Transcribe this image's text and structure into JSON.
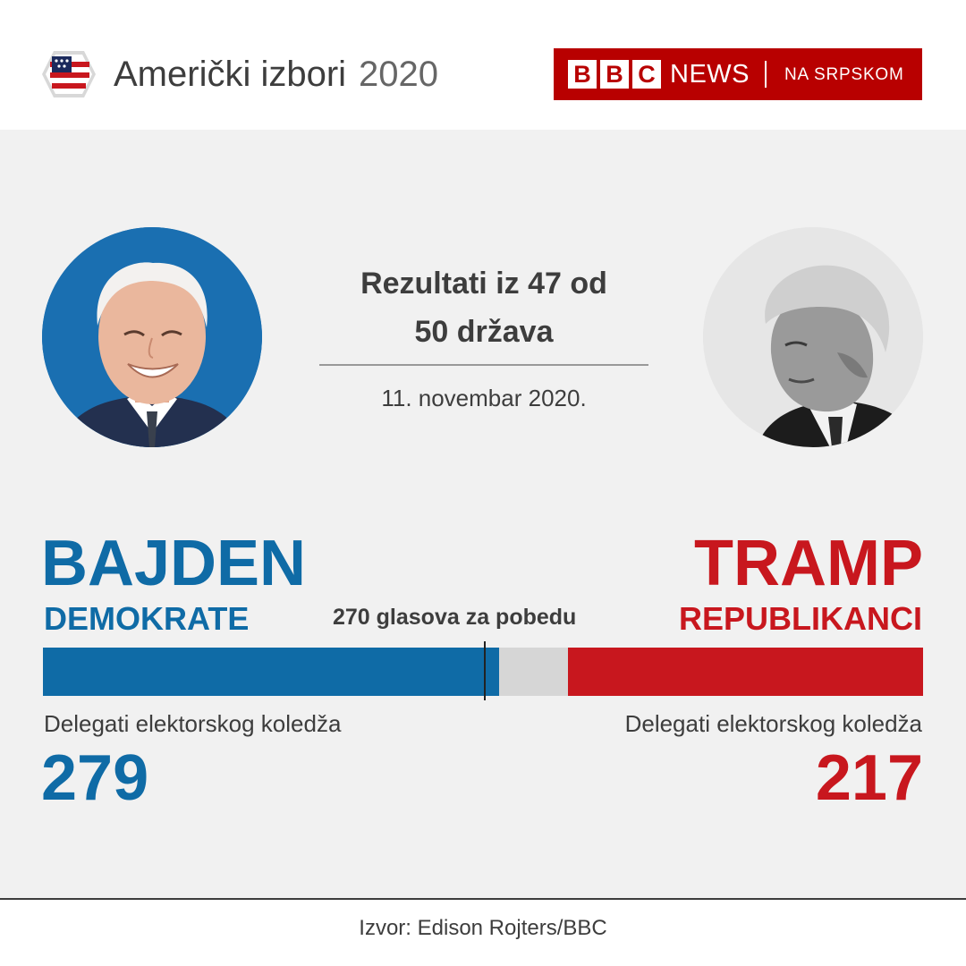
{
  "header": {
    "title": "Američki izbori",
    "year": "2020",
    "brand_letters": [
      "B",
      "B",
      "C"
    ],
    "brand_news": "NEWS",
    "brand_service": "NA SRPSKOM"
  },
  "subtitle_lines": [
    "Rezultati iz 47 od",
    "50 država"
  ],
  "date": "11. novembar 2020.",
  "threshold_label": "270 glasova za pobedu",
  "candidates": {
    "left": {
      "name": "BAJDEN",
      "party": "DEMOKRATE",
      "ev_label": "Delegati elektorskog koledža",
      "ev_value": "279",
      "color": "#0f6ba6"
    },
    "right": {
      "name": "TRAMP",
      "party": "REPUBLIKANCI",
      "ev_label": "Delegati elektorskog koledža",
      "ev_value": "217",
      "color": "#c8171e"
    }
  },
  "source": "Izvor: Edison Rojters/BBC",
  "chart_data": {
    "type": "bar",
    "orientation": "horizontal-stacked",
    "total": 538,
    "threshold": 270,
    "series": [
      {
        "name": "DEMOKRATE",
        "value": 279,
        "color": "#0f6ba6"
      },
      {
        "name": "REPUBLIKANCI",
        "value": 217,
        "color": "#c8171e"
      }
    ],
    "remaining_color": "#d6d6d6"
  }
}
